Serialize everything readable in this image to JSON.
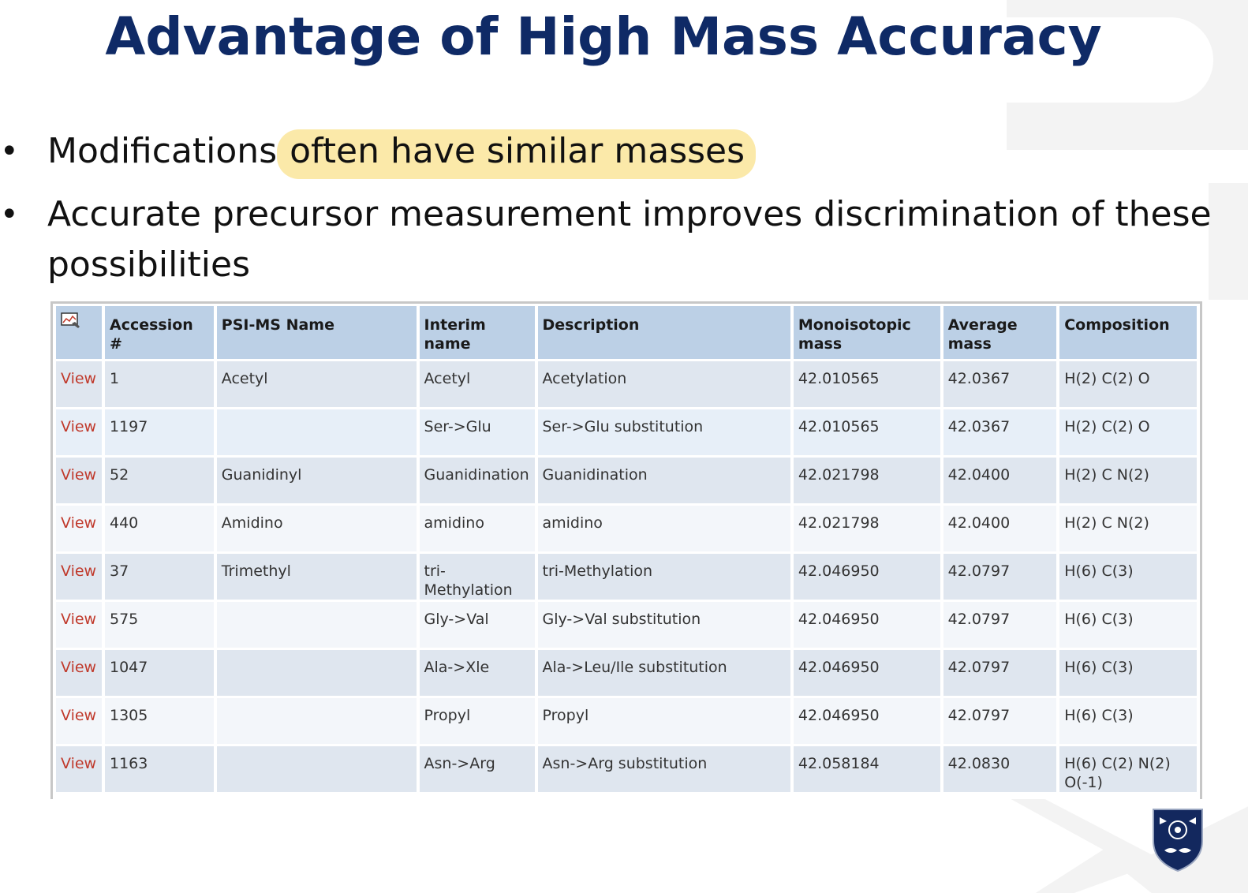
{
  "title": "Advantage of High Mass Accuracy",
  "bullets": [
    {
      "plain": "Modifications",
      "highlight": " often have similar masses"
    },
    {
      "text": "Accurate precursor measurement improves discrimination of these possibilities"
    }
  ],
  "table": {
    "headers": [
      "Accession #",
      "PSI-MS Name",
      "Interim name",
      "Description",
      "Monoisotopic mass",
      "Average mass",
      "Composition"
    ],
    "header_icon": "chart-icon",
    "view_label": "View",
    "rows": [
      {
        "accession": "1",
        "psi": "Acetyl",
        "interim": "Acetyl",
        "description": "Acetylation",
        "mono": "42.010565",
        "avg": "42.0367",
        "composition": "H(2) C(2) O"
      },
      {
        "accession": "1197",
        "psi": "",
        "interim": "Ser->Glu",
        "description": "Ser->Glu substitution",
        "mono": "42.010565",
        "avg": "42.0367",
        "composition": "H(2) C(2) O"
      },
      {
        "accession": "52",
        "psi": "Guanidinyl",
        "interim": "Guanidination",
        "description": "Guanidination",
        "mono": "42.021798",
        "avg": "42.0400",
        "composition": "H(2) C N(2)"
      },
      {
        "accession": "440",
        "psi": "Amidino",
        "interim": "amidino",
        "description": "amidino",
        "mono": "42.021798",
        "avg": "42.0400",
        "composition": "H(2) C N(2)"
      },
      {
        "accession": "37",
        "psi": "Trimethyl",
        "interim": "tri-Methylation",
        "description": "tri-Methylation",
        "mono": "42.046950",
        "avg": "42.0797",
        "composition": "H(6) C(3)"
      },
      {
        "accession": "575",
        "psi": "",
        "interim": "Gly->Val",
        "description": "Gly->Val substitution",
        "mono": "42.046950",
        "avg": "42.0797",
        "composition": "H(6) C(3)"
      },
      {
        "accession": "1047",
        "psi": "",
        "interim": "Ala->Xle",
        "description": "Ala->Leu/Ile substitution",
        "mono": "42.046950",
        "avg": "42.0797",
        "composition": "H(6) C(3)"
      },
      {
        "accession": "1305",
        "psi": "",
        "interim": "Propyl",
        "description": "Propyl",
        "mono": "42.046950",
        "avg": "42.0797",
        "composition": "H(6) C(3)"
      },
      {
        "accession": "1163",
        "psi": "",
        "interim": "Asn->Arg",
        "description": "Asn->Arg substitution",
        "mono": "42.058184",
        "avg": "42.0830",
        "composition": "H(6) C(2) N(2) O(-1)"
      }
    ]
  },
  "colors": {
    "title": "#0f2a66",
    "highlight": "#fbe9a9",
    "header_bg": "#bcd0e6",
    "view_link": "#c0392b"
  },
  "logo": "university-crest-icon"
}
